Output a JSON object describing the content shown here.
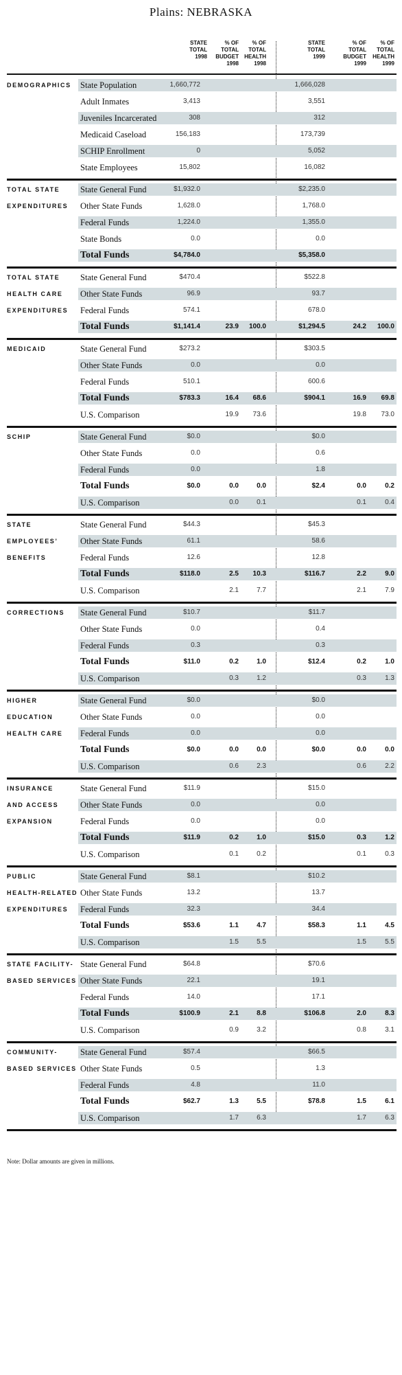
{
  "title": "Plains: NEBRASKA",
  "headers": {
    "h1": "STATE\nTOTAL\n1998",
    "h2": "% OF\nTOTAL\nBUDGET\n1998",
    "h3": "% OF\nTOTAL\nHEALTH\n1998",
    "h4": "STATE\nTOTAL\n1999",
    "h5": "% OF\nTOTAL\nBUDGET\n1999",
    "h6": "% OF\nTOTAL\nHEALTH\n1999"
  },
  "sections": [
    {
      "label": [
        "DEMOGRAPHICS"
      ],
      "rows": [
        {
          "label": "State Population",
          "v": [
            "1,660,772",
            "",
            "",
            "1,666,028",
            "",
            ""
          ],
          "shaded": true
        },
        {
          "label": "Adult Inmates",
          "v": [
            "3,413",
            "",
            "",
            "3,551",
            "",
            ""
          ],
          "shaded": false
        },
        {
          "label": "Juveniles Incarcerated",
          "v": [
            "308",
            "",
            "",
            "312",
            "",
            ""
          ],
          "shaded": true
        },
        {
          "label": "Medicaid Caseload",
          "v": [
            "156,183",
            "",
            "",
            "173,739",
            "",
            ""
          ],
          "shaded": false
        },
        {
          "label": "SCHIP Enrollment",
          "v": [
            "0",
            "",
            "",
            "5,052",
            "",
            ""
          ],
          "shaded": true
        },
        {
          "label": "State Employees",
          "v": [
            "15,802",
            "",
            "",
            "16,082",
            "",
            ""
          ],
          "shaded": false
        }
      ]
    },
    {
      "label": [
        "TOTAL STATE",
        "EXPENDITURES"
      ],
      "rows": [
        {
          "label": "State General Fund",
          "v": [
            "$1,932.0",
            "",
            "",
            "$2,235.0",
            "",
            ""
          ],
          "shaded": true
        },
        {
          "label": "Other State Funds",
          "v": [
            "1,628.0",
            "",
            "",
            "1,768.0",
            "",
            ""
          ],
          "shaded": false
        },
        {
          "label": "Federal Funds",
          "v": [
            "1,224.0",
            "",
            "",
            "1,355.0",
            "",
            ""
          ],
          "shaded": true
        },
        {
          "label": "State Bonds",
          "v": [
            "0.0",
            "",
            "",
            "0.0",
            "",
            ""
          ],
          "shaded": false
        },
        {
          "label": "Total Funds",
          "v": [
            "$4,784.0",
            "",
            "",
            "$5,358.0",
            "",
            ""
          ],
          "shaded": true,
          "total": true
        }
      ]
    },
    {
      "label": [
        "TOTAL STATE",
        "HEALTH CARE",
        "EXPENDITURES"
      ],
      "rows": [
        {
          "label": "State General Fund",
          "v": [
            "$470.4",
            "",
            "",
            "$522.8",
            "",
            ""
          ],
          "shaded": false
        },
        {
          "label": "Other State Funds",
          "v": [
            "96.9",
            "",
            "",
            "93.7",
            "",
            ""
          ],
          "shaded": true
        },
        {
          "label": "Federal Funds",
          "v": [
            "574.1",
            "",
            "",
            "678.0",
            "",
            ""
          ],
          "shaded": false
        },
        {
          "label": "Total Funds",
          "v": [
            "$1,141.4",
            "23.9",
            "100.0",
            "$1,294.5",
            "24.2",
            "100.0"
          ],
          "shaded": true,
          "total": true
        }
      ]
    },
    {
      "label": [
        "MEDICAID"
      ],
      "rows": [
        {
          "label": "State General Fund",
          "v": [
            "$273.2",
            "",
            "",
            "$303.5",
            "",
            ""
          ],
          "shaded": false
        },
        {
          "label": "Other State Funds",
          "v": [
            "0.0",
            "",
            "",
            "0.0",
            "",
            ""
          ],
          "shaded": true
        },
        {
          "label": "Federal Funds",
          "v": [
            "510.1",
            "",
            "",
            "600.6",
            "",
            ""
          ],
          "shaded": false
        },
        {
          "label": "Total Funds",
          "v": [
            "$783.3",
            "16.4",
            "68.6",
            "$904.1",
            "16.9",
            "69.8"
          ],
          "shaded": true,
          "total": true
        },
        {
          "label": "U.S. Comparison",
          "v": [
            "",
            "19.9",
            "73.6",
            "",
            "19.8",
            "73.0"
          ],
          "shaded": false
        }
      ]
    },
    {
      "label": [
        "SCHIP"
      ],
      "rows": [
        {
          "label": "State General Fund",
          "v": [
            "$0.0",
            "",
            "",
            "$0.0",
            "",
            ""
          ],
          "shaded": true
        },
        {
          "label": "Other State Funds",
          "v": [
            "0.0",
            "",
            "",
            "0.6",
            "",
            ""
          ],
          "shaded": false
        },
        {
          "label": "Federal Funds",
          "v": [
            "0.0",
            "",
            "",
            "1.8",
            "",
            ""
          ],
          "shaded": true
        },
        {
          "label": "Total Funds",
          "v": [
            "$0.0",
            "0.0",
            "0.0",
            "$2.4",
            "0.0",
            "0.2"
          ],
          "shaded": false,
          "total": true
        },
        {
          "label": "U.S. Comparison",
          "v": [
            "",
            "0.0",
            "0.1",
            "",
            "0.1",
            "0.4"
          ],
          "shaded": true
        }
      ]
    },
    {
      "label": [
        "STATE",
        "EMPLOYEES’",
        "BENEFITS"
      ],
      "rows": [
        {
          "label": "State General Fund",
          "v": [
            "$44.3",
            "",
            "",
            "$45.3",
            "",
            ""
          ],
          "shaded": false
        },
        {
          "label": "Other State Funds",
          "v": [
            "61.1",
            "",
            "",
            "58.6",
            "",
            ""
          ],
          "shaded": true
        },
        {
          "label": "Federal Funds",
          "v": [
            "12.6",
            "",
            "",
            "12.8",
            "",
            ""
          ],
          "shaded": false
        },
        {
          "label": "Total Funds",
          "v": [
            "$118.0",
            "2.5",
            "10.3",
            "$116.7",
            "2.2",
            "9.0"
          ],
          "shaded": true,
          "total": true
        },
        {
          "label": "U.S. Comparison",
          "v": [
            "",
            "2.1",
            "7.7",
            "",
            "2.1",
            "7.9"
          ],
          "shaded": false
        }
      ]
    },
    {
      "label": [
        "CORRECTIONS"
      ],
      "rows": [
        {
          "label": "State General Fund",
          "v": [
            "$10.7",
            "",
            "",
            "$11.7",
            "",
            ""
          ],
          "shaded": true
        },
        {
          "label": "Other State Funds",
          "v": [
            "0.0",
            "",
            "",
            "0.4",
            "",
            ""
          ],
          "shaded": false
        },
        {
          "label": "Federal Funds",
          "v": [
            "0.3",
            "",
            "",
            "0.3",
            "",
            ""
          ],
          "shaded": true
        },
        {
          "label": "Total Funds",
          "v": [
            "$11.0",
            "0.2",
            "1.0",
            "$12.4",
            "0.2",
            "1.0"
          ],
          "shaded": false,
          "total": true
        },
        {
          "label": "U.S. Comparison",
          "v": [
            "",
            "0.3",
            "1.2",
            "",
            "0.3",
            "1.3"
          ],
          "shaded": true
        }
      ]
    },
    {
      "label": [
        "HIGHER",
        "EDUCATION",
        "HEALTH CARE"
      ],
      "rows": [
        {
          "label": "State General Fund",
          "v": [
            "$0.0",
            "",
            "",
            "$0.0",
            "",
            ""
          ],
          "shaded": true
        },
        {
          "label": "Other State Funds",
          "v": [
            "0.0",
            "",
            "",
            "0.0",
            "",
            ""
          ],
          "shaded": false
        },
        {
          "label": "Federal Funds",
          "v": [
            "0.0",
            "",
            "",
            "0.0",
            "",
            ""
          ],
          "shaded": true
        },
        {
          "label": "Total Funds",
          "v": [
            "$0.0",
            "0.0",
            "0.0",
            "$0.0",
            "0.0",
            "0.0"
          ],
          "shaded": false,
          "total": true
        },
        {
          "label": "U.S. Comparison",
          "v": [
            "",
            "0.6",
            "2.3",
            "",
            "0.6",
            "2.2"
          ],
          "shaded": true
        }
      ]
    },
    {
      "label": [
        "INSURANCE",
        "AND ACCESS",
        "EXPANSION"
      ],
      "rows": [
        {
          "label": "State General Fund",
          "v": [
            "$11.9",
            "",
            "",
            "$15.0",
            "",
            ""
          ],
          "shaded": false
        },
        {
          "label": "Other State Funds",
          "v": [
            "0.0",
            "",
            "",
            "0.0",
            "",
            ""
          ],
          "shaded": true
        },
        {
          "label": "Federal Funds",
          "v": [
            "0.0",
            "",
            "",
            "0.0",
            "",
            ""
          ],
          "shaded": false
        },
        {
          "label": "Total Funds",
          "v": [
            "$11.9",
            "0.2",
            "1.0",
            "$15.0",
            "0.3",
            "1.2"
          ],
          "shaded": true,
          "total": true
        },
        {
          "label": "U.S. Comparison",
          "v": [
            "",
            "0.1",
            "0.2",
            "",
            "0.1",
            "0.3"
          ],
          "shaded": false
        }
      ]
    },
    {
      "label": [
        "PUBLIC",
        "HEALTH-RELATED",
        "EXPENDITURES"
      ],
      "rows": [
        {
          "label": "State General Fund",
          "v": [
            "$8.1",
            "",
            "",
            "$10.2",
            "",
            ""
          ],
          "shaded": true
        },
        {
          "label": "Other State Funds",
          "v": [
            "13.2",
            "",
            "",
            "13.7",
            "",
            ""
          ],
          "shaded": false
        },
        {
          "label": "Federal Funds",
          "v": [
            "32.3",
            "",
            "",
            "34.4",
            "",
            ""
          ],
          "shaded": true
        },
        {
          "label": "Total Funds",
          "v": [
            "$53.6",
            "1.1",
            "4.7",
            "$58.3",
            "1.1",
            "4.5"
          ],
          "shaded": false,
          "total": true
        },
        {
          "label": "U.S. Comparison",
          "v": [
            "",
            "1.5",
            "5.5",
            "",
            "1.5",
            "5.5"
          ],
          "shaded": true
        }
      ]
    },
    {
      "label": [
        "STATE FACILITY-",
        "BASED SERVICES"
      ],
      "rows": [
        {
          "label": "State General Fund",
          "v": [
            "$64.8",
            "",
            "",
            "$70.6",
            "",
            ""
          ],
          "shaded": false
        },
        {
          "label": "Other State Funds",
          "v": [
            "22.1",
            "",
            "",
            "19.1",
            "",
            ""
          ],
          "shaded": true
        },
        {
          "label": "Federal Funds",
          "v": [
            "14.0",
            "",
            "",
            "17.1",
            "",
            ""
          ],
          "shaded": false
        },
        {
          "label": "Total Funds",
          "v": [
            "$100.9",
            "2.1",
            "8.8",
            "$106.8",
            "2.0",
            "8.3"
          ],
          "shaded": true,
          "total": true
        },
        {
          "label": "U.S. Comparison",
          "v": [
            "",
            "0.9",
            "3.2",
            "",
            "0.8",
            "3.1"
          ],
          "shaded": false
        }
      ]
    },
    {
      "label": [
        "COMMUNITY-",
        "BASED SERVICES"
      ],
      "rows": [
        {
          "label": "State General Fund",
          "v": [
            "$57.4",
            "",
            "",
            "$66.5",
            "",
            ""
          ],
          "shaded": true
        },
        {
          "label": "Other State Funds",
          "v": [
            "0.5",
            "",
            "",
            "1.3",
            "",
            ""
          ],
          "shaded": false
        },
        {
          "label": "Federal Funds",
          "v": [
            "4.8",
            "",
            "",
            "11.0",
            "",
            ""
          ],
          "shaded": true
        },
        {
          "label": "Total Funds",
          "v": [
            "$62.7",
            "1.3",
            "5.5",
            "$78.8",
            "1.5",
            "6.1"
          ],
          "shaded": false,
          "total": true
        },
        {
          "label": "U.S. Comparison",
          "v": [
            "",
            "1.7",
            "6.3",
            "",
            "1.7",
            "6.3"
          ],
          "shaded": true
        }
      ]
    }
  ],
  "note": "Note: Dollar amounts are given in millions."
}
